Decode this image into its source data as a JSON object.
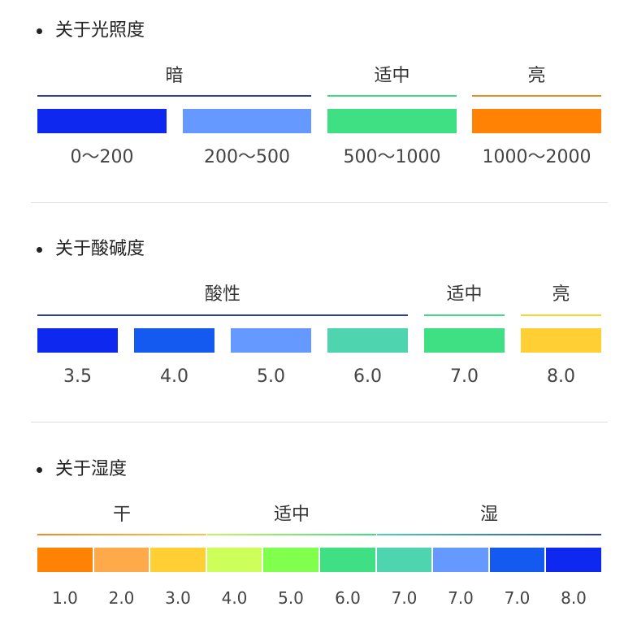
{
  "sections": [
    {
      "title": "关于光照度",
      "categories": [
        {
          "label": "暗",
          "color": "#2a3f9e"
        },
        {
          "label": "适中",
          "color": "#3ddc84"
        },
        {
          "label": "亮",
          "color": "#f08a24"
        }
      ],
      "swatches": [
        {
          "color": "#0f28f0",
          "label": "0～200"
        },
        {
          "color": "#6699ff",
          "label": "200～500"
        },
        {
          "color": "#3ee083",
          "label": "500～1000"
        },
        {
          "color": "#ff8205",
          "label": "1000～2000"
        }
      ]
    },
    {
      "title": "关于酸碱度",
      "categories": [
        {
          "label": "酸性",
          "color": "#2a3f9e"
        },
        {
          "label": "适中",
          "color": "#3ddc84"
        },
        {
          "label": "亮",
          "color": "#ffcf33"
        }
      ],
      "swatches": [
        {
          "color": "#0f28f0",
          "label": "3.5"
        },
        {
          "color": "#1459f0",
          "label": "4.0"
        },
        {
          "color": "#6699ff",
          "label": "5.0"
        },
        {
          "color": "#4fd4b0",
          "label": "6.0"
        },
        {
          "color": "#3ee083",
          "label": "7.0"
        },
        {
          "color": "#ffcf33",
          "label": "8.0"
        }
      ]
    },
    {
      "title": "关于湿度",
      "categories": [
        {
          "label": "干",
          "color": "#f0a530"
        },
        {
          "label": "适中",
          "color": "#6fe86f"
        },
        {
          "label": "湿",
          "color": "#2a3f9e"
        }
      ],
      "swatches": [
        {
          "color": "#ff8205",
          "label": "1.0"
        },
        {
          "color": "#ffaa4a",
          "label": "2.0"
        },
        {
          "color": "#ffcf33",
          "label": "3.0"
        },
        {
          "color": "#cdff5a",
          "label": "4.0"
        },
        {
          "color": "#80ff4c",
          "label": "5.0"
        },
        {
          "color": "#3ee083",
          "label": "6.0"
        },
        {
          "color": "#4fd4b0",
          "label": "7.0"
        },
        {
          "color": "#6699ff",
          "label": "7.0"
        },
        {
          "color": "#1459f0",
          "label": "7.0"
        },
        {
          "color": "#0f28f0",
          "label": "8.0"
        }
      ]
    }
  ]
}
